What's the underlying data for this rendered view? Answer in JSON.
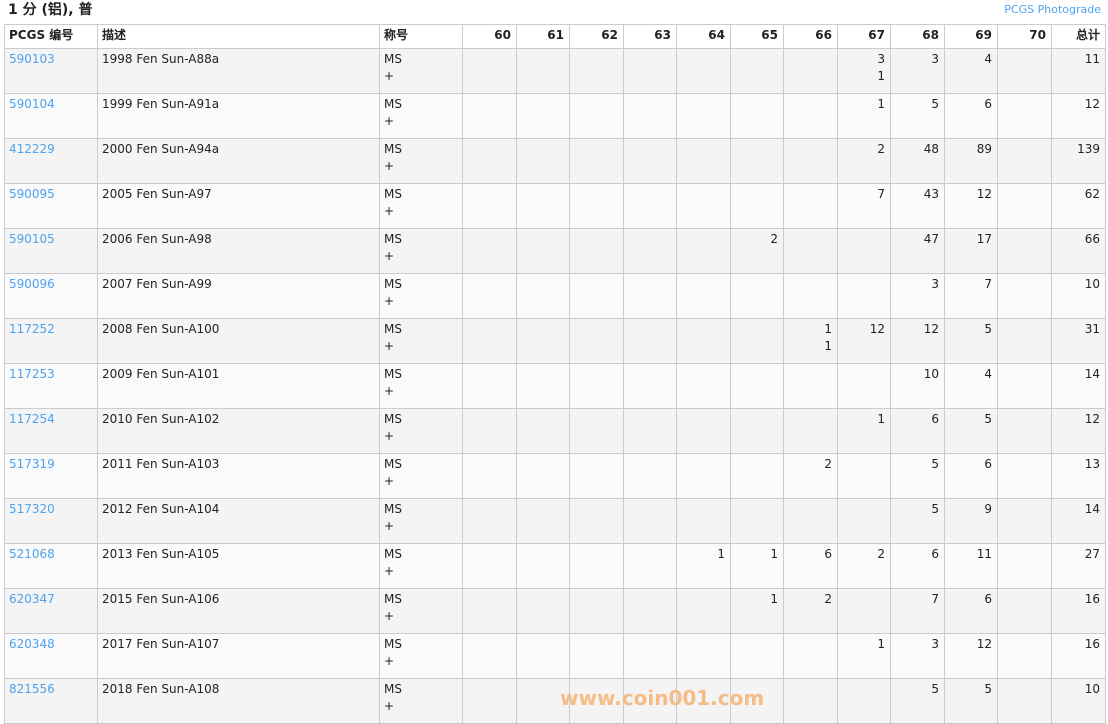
{
  "header": {
    "title": "1 分 (铝), 普",
    "photograde_link": "PCGS Photograde"
  },
  "columns": [
    "PCGS 编号",
    "描述",
    "称号",
    "60",
    "61",
    "62",
    "63",
    "64",
    "65",
    "66",
    "67",
    "68",
    "69",
    "70",
    "总计"
  ],
  "rows": [
    {
      "id": "590103",
      "desc": "1998 Fen Sun-A88a",
      "designation": [
        "MS",
        "+"
      ],
      "grades": {
        "67": [
          "3",
          "1"
        ],
        "68": [
          "3",
          ""
        ],
        "69": [
          "4",
          ""
        ]
      },
      "total": "11"
    },
    {
      "id": "590104",
      "desc": "1999 Fen Sun-A91a",
      "designation": [
        "MS",
        "+"
      ],
      "grades": {
        "67": [
          "1",
          ""
        ],
        "68": [
          "5",
          ""
        ],
        "69": [
          "6",
          ""
        ]
      },
      "total": "12"
    },
    {
      "id": "412229",
      "desc": "2000 Fen Sun-A94a",
      "designation": [
        "MS",
        "+"
      ],
      "grades": {
        "67": [
          "2",
          ""
        ],
        "68": [
          "48",
          ""
        ],
        "69": [
          "89",
          ""
        ]
      },
      "total": "139"
    },
    {
      "id": "590095",
      "desc": "2005 Fen Sun-A97",
      "designation": [
        "MS",
        "+"
      ],
      "grades": {
        "67": [
          "7",
          ""
        ],
        "68": [
          "43",
          ""
        ],
        "69": [
          "12",
          ""
        ]
      },
      "total": "62"
    },
    {
      "id": "590105",
      "desc": "2006 Fen Sun-A98",
      "designation": [
        "MS",
        "+"
      ],
      "grades": {
        "65": [
          "2",
          ""
        ],
        "68": [
          "47",
          ""
        ],
        "69": [
          "17",
          ""
        ]
      },
      "total": "66"
    },
    {
      "id": "590096",
      "desc": "2007 Fen Sun-A99",
      "designation": [
        "MS",
        "+"
      ],
      "grades": {
        "68": [
          "3",
          ""
        ],
        "69": [
          "7",
          ""
        ]
      },
      "total": "10"
    },
    {
      "id": "117252",
      "desc": "2008 Fen Sun-A100",
      "designation": [
        "MS",
        "+"
      ],
      "grades": {
        "66": [
          "1",
          "1"
        ],
        "67": [
          "12",
          ""
        ],
        "68": [
          "12",
          ""
        ],
        "69": [
          "5",
          ""
        ]
      },
      "total": "31"
    },
    {
      "id": "117253",
      "desc": "2009 Fen Sun-A101",
      "designation": [
        "MS",
        "+"
      ],
      "grades": {
        "68": [
          "10",
          ""
        ],
        "69": [
          "4",
          ""
        ]
      },
      "total": "14"
    },
    {
      "id": "117254",
      "desc": "2010 Fen Sun-A102",
      "designation": [
        "MS",
        "+"
      ],
      "grades": {
        "67": [
          "1",
          ""
        ],
        "68": [
          "6",
          ""
        ],
        "69": [
          "5",
          ""
        ]
      },
      "total": "12"
    },
    {
      "id": "517319",
      "desc": "2011 Fen Sun-A103",
      "designation": [
        "MS",
        "+"
      ],
      "grades": {
        "66": [
          "2",
          ""
        ],
        "68": [
          "5",
          ""
        ],
        "69": [
          "6",
          ""
        ]
      },
      "total": "13"
    },
    {
      "id": "517320",
      "desc": "2012 Fen Sun-A104",
      "designation": [
        "MS",
        "+"
      ],
      "grades": {
        "68": [
          "5",
          ""
        ],
        "69": [
          "9",
          ""
        ]
      },
      "total": "14"
    },
    {
      "id": "521068",
      "desc": "2013 Fen Sun-A105",
      "designation": [
        "MS",
        "+"
      ],
      "grades": {
        "64": [
          "1",
          ""
        ],
        "65": [
          "1",
          ""
        ],
        "66": [
          "6",
          ""
        ],
        "67": [
          "2",
          ""
        ],
        "68": [
          "6",
          ""
        ],
        "69": [
          "11",
          ""
        ]
      },
      "total": "27"
    },
    {
      "id": "620347",
      "desc": "2015 Fen Sun-A106",
      "designation": [
        "MS",
        "+"
      ],
      "grades": {
        "65": [
          "1",
          ""
        ],
        "66": [
          "2",
          ""
        ],
        "68": [
          "7",
          ""
        ],
        "69": [
          "6",
          ""
        ]
      },
      "total": "16"
    },
    {
      "id": "620348",
      "desc": "2017 Fen Sun-A107",
      "designation": [
        "MS",
        "+"
      ],
      "grades": {
        "67": [
          "1",
          ""
        ],
        "68": [
          "3",
          ""
        ],
        "69": [
          "12",
          ""
        ]
      },
      "total": "16"
    },
    {
      "id": "821556",
      "desc": "2018 Fen Sun-A108",
      "designation": [
        "MS",
        "+"
      ],
      "grades": {
        "68": [
          "5",
          ""
        ],
        "69": [
          "5",
          ""
        ]
      },
      "total": "10"
    }
  ],
  "watermark": "www.coin001.com",
  "colors": {
    "link": "#4da3ef",
    "watermark": "#f7b77a"
  }
}
